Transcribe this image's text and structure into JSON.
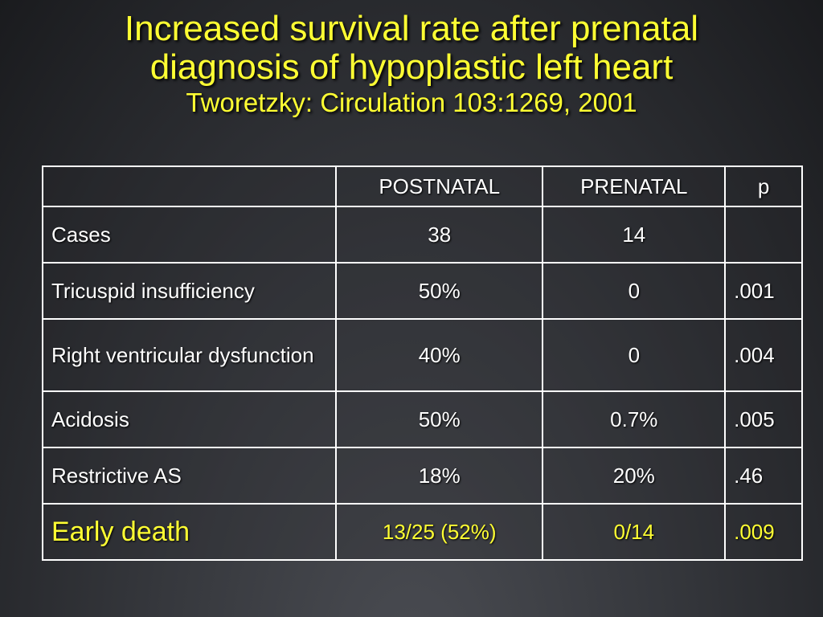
{
  "slide": {
    "title_line1": "Increased survival rate after prenatal",
    "title_line2": "diagnosis of hypoplastic left heart",
    "citation": "Tworetzky: Circulation 103:1269, 2001"
  },
  "table": {
    "headers": [
      "",
      "POSTNATAL",
      "PRENATAL",
      "p"
    ],
    "rows": [
      {
        "label": "Cases",
        "postnatal": "38",
        "prenatal": "14",
        "p": ""
      },
      {
        "label": "Tricuspid insufficiency",
        "postnatal": "50%",
        "prenatal": "0",
        "p": ".001"
      },
      {
        "label": "Right ventricular dysfunction",
        "postnatal": "40%",
        "prenatal": "0",
        "p": ".004"
      },
      {
        "label": "Acidosis",
        "postnatal": "50%",
        "prenatal": "0.7%",
        "p": ".005"
      },
      {
        "label": "Restrictive AS",
        "postnatal": "18%",
        "prenatal": "20%",
        "p": ".46"
      },
      {
        "label": "Early death",
        "postnatal": "13/25 (52%)",
        "prenatal": "0/14",
        "p": ".009"
      }
    ]
  },
  "colors": {
    "title": "#ffff33",
    "highlight_row": "#ffff33",
    "text": "#ffffff",
    "border": "#ffffff"
  }
}
